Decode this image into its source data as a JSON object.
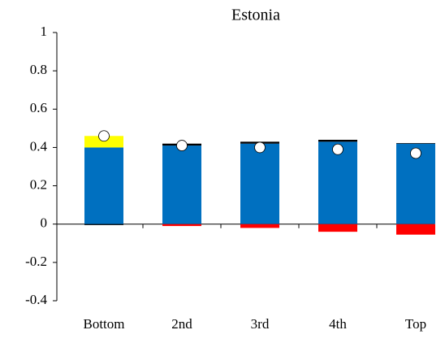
{
  "chart_data": {
    "type": "stacked-bar",
    "title": "Estonia",
    "categories": [
      "Bottom",
      "2nd",
      "3rd",
      "4th",
      "Top"
    ],
    "series": [
      {
        "color": "#0070c0",
        "values": [
          0.4,
          0.41,
          0.42,
          0.43,
          0.42
        ]
      },
      {
        "color": "#ffff00",
        "values": [
          0.06,
          0,
          0,
          0,
          0
        ]
      },
      {
        "color": "#000000",
        "values": [
          -0.005,
          0.01,
          0.01,
          0.01,
          0.003
        ]
      },
      {
        "color": "#ff0000",
        "values": [
          0,
          -0.01,
          -0.02,
          -0.04,
          -0.055
        ]
      },
      {
        "type": "marker",
        "color": "#ffffff",
        "values": [
          0.46,
          0.41,
          0.4,
          0.39,
          0.37
        ]
      }
    ],
    "ylim": [
      -0.4,
      1
    ],
    "yticks": [
      1,
      0.8,
      0.6,
      0.4,
      0.2,
      0,
      -0.2,
      -0.4
    ],
    "grid": false
  }
}
